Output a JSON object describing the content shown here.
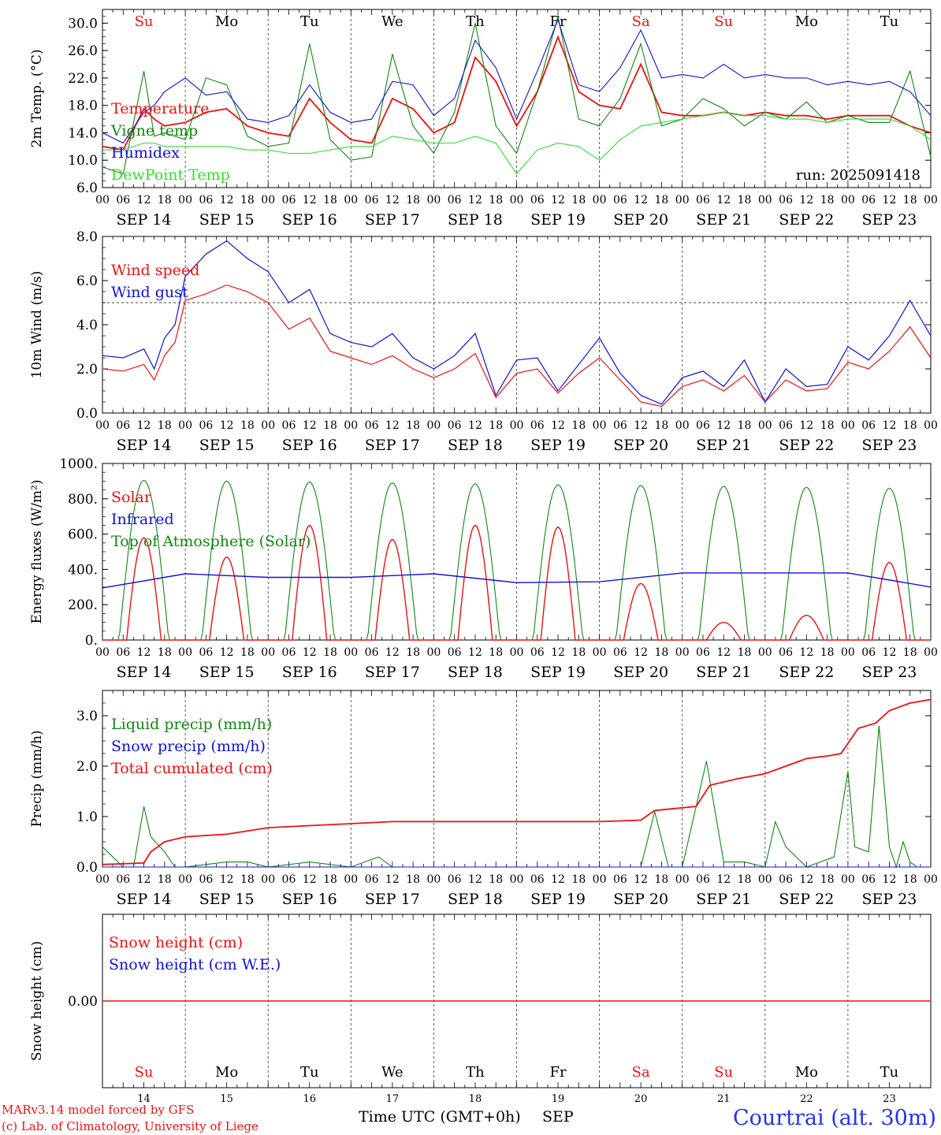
{
  "colors": {
    "red": "#ee1111",
    "green": "#118811",
    "blue": "#1111dd",
    "lightgreen": "#33dd33",
    "black": "#000000",
    "sunday": "#ee1111",
    "weekday": "#000000",
    "location": "#2233ee"
  },
  "run_label": "run: 2025091418",
  "footer": {
    "credit_line1": "MARv3.14 model forced by GFS",
    "credit_line2": "(c) Lab. of Climatology, University of Liege",
    "xlabel": "Time UTC (GMT+0h)",
    "month": "SEP",
    "location": "Courtrai (alt. 30m)"
  },
  "days": {
    "abbrev": [
      "Su",
      "Mo",
      "Tu",
      "We",
      "Th",
      "Fr",
      "Sa",
      "Su",
      "Mo",
      "Tu"
    ],
    "abbrev_colors": [
      "sunday",
      "weekday",
      "weekday",
      "weekday",
      "weekday",
      "weekday",
      "sunday",
      "sunday",
      "weekday",
      "weekday"
    ],
    "date_labels": [
      "SEP 14",
      "SEP 15",
      "SEP 16",
      "SEP 17",
      "SEP 18",
      "SEP 19",
      "SEP 20",
      "SEP 21",
      "SEP 22",
      "SEP 23"
    ],
    "day_numbers": [
      "14",
      "15",
      "16",
      "17",
      "18",
      "19",
      "20",
      "21",
      "22",
      "23"
    ],
    "hour_ticks": [
      "00",
      "06",
      "12",
      "18"
    ],
    "end_tick": "00"
  },
  "chart_data": [
    {
      "type": "line",
      "ylabel": "2m Temp. (°C)",
      "ylim": [
        6.0,
        32.0
      ],
      "yticks": [
        "6.0",
        "10.0",
        "14.0",
        "18.0",
        "22.0",
        "26.0",
        "30.0"
      ],
      "ytick_values": [
        6,
        10,
        14,
        18,
        22,
        26,
        30
      ],
      "x_hours": [
        0,
        6,
        12,
        15,
        18,
        24,
        30,
        36,
        42,
        48,
        54,
        60,
        66,
        72,
        78,
        84,
        90,
        96,
        102,
        108,
        114,
        120,
        126,
        132,
        138,
        144,
        150,
        156,
        162,
        168,
        174,
        180,
        186,
        192,
        198,
        204,
        210,
        216,
        222,
        228,
        234,
        240
      ],
      "series": [
        {
          "name": "Temperature",
          "color": "red",
          "values": [
            12.0,
            11.5,
            17.5,
            16.0,
            15.0,
            15.5,
            17.0,
            17.5,
            15.0,
            14.0,
            13.5,
            19.0,
            15.5,
            13.0,
            12.5,
            19.0,
            17.5,
            14.0,
            15.5,
            25.0,
            21.5,
            15.0,
            20.0,
            28.0,
            20.0,
            18.0,
            17.5,
            24.0,
            17.0,
            16.5,
            16.5,
            17.0,
            16.5,
            17.0,
            16.5,
            16.5,
            16.0,
            16.5,
            16.5,
            16.5,
            15.0,
            14.0
          ]
        },
        {
          "name": "Vigne temp",
          "color": "green",
          "values": [
            9.0,
            8.0,
            23.0,
            13.5,
            14.0,
            13.0,
            22.0,
            21.0,
            13.5,
            12.0,
            12.5,
            27.0,
            13.0,
            10.0,
            10.5,
            25.5,
            15.0,
            11.0,
            17.0,
            30.0,
            15.0,
            11.0,
            20.0,
            31.0,
            16.0,
            15.0,
            19.0,
            27.0,
            15.0,
            16.0,
            19.0,
            17.5,
            15.0,
            17.0,
            16.0,
            18.5,
            15.5,
            16.5,
            15.5,
            15.5,
            23.0,
            10.5
          ]
        },
        {
          "name": "Humidex",
          "color": "blue",
          "values": [
            14.0,
            12.5,
            17.0,
            18.0,
            20.0,
            22.0,
            19.5,
            20.0,
            16.0,
            15.5,
            16.5,
            21.0,
            17.0,
            15.5,
            16.0,
            21.5,
            21.0,
            16.5,
            19.0,
            27.5,
            23.5,
            16.0,
            23.0,
            30.5,
            21.0,
            20.0,
            23.5,
            29.0,
            22.0,
            22.5,
            22.0,
            24.0,
            22.0,
            22.5,
            22.0,
            22.0,
            21.0,
            21.5,
            21.0,
            21.5,
            20.0,
            16.5
          ]
        },
        {
          "name": "DewPoint Temp",
          "color": "lightgreen",
          "values": [
            11.5,
            11.5,
            12.5,
            12.5,
            12.0,
            12.0,
            12.0,
            12.0,
            11.5,
            11.5,
            11.0,
            11.0,
            11.5,
            12.0,
            12.0,
            13.5,
            13.0,
            12.5,
            12.5,
            13.5,
            12.5,
            8.0,
            11.5,
            12.5,
            12.0,
            10.0,
            13.0,
            15.0,
            15.5,
            16.0,
            16.5,
            17.0,
            16.5,
            16.5,
            16.0,
            16.0,
            15.5,
            16.0,
            16.0,
            16.0,
            15.0,
            13.0
          ]
        }
      ]
    },
    {
      "type": "line",
      "ylabel": "10m Wind (m/s)",
      "ylim": [
        0.0,
        8.0
      ],
      "yticks": [
        "0.0",
        "2.0",
        "4.0",
        "6.0",
        "8.0"
      ],
      "ytick_values": [
        0,
        2,
        4,
        6,
        8
      ],
      "reference_line": 5.0,
      "x_hours": [
        0,
        6,
        12,
        15,
        18,
        21,
        24,
        30,
        36,
        42,
        48,
        54,
        60,
        66,
        72,
        78,
        84,
        90,
        96,
        102,
        108,
        114,
        120,
        126,
        132,
        138,
        144,
        150,
        156,
        162,
        168,
        174,
        180,
        186,
        192,
        198,
        204,
        210,
        216,
        222,
        228,
        234,
        240
      ],
      "series": [
        {
          "name": "Wind speed",
          "color": "red",
          "values": [
            2.0,
            1.9,
            2.2,
            1.5,
            2.6,
            3.2,
            5.1,
            5.4,
            5.8,
            5.5,
            5.0,
            3.8,
            4.3,
            2.8,
            2.5,
            2.2,
            2.6,
            2.0,
            1.6,
            2.0,
            2.7,
            0.7,
            1.8,
            2.0,
            0.9,
            1.8,
            2.5,
            1.5,
            0.5,
            0.3,
            1.2,
            1.5,
            1.0,
            1.7,
            0.5,
            1.5,
            1.0,
            1.1,
            2.3,
            2.0,
            2.8,
            3.9,
            2.5
          ]
        },
        {
          "name": "Wind gust",
          "color": "blue",
          "values": [
            2.6,
            2.5,
            2.9,
            2.0,
            3.4,
            4.0,
            6.2,
            7.2,
            7.8,
            7.0,
            6.4,
            5.0,
            5.6,
            3.6,
            3.2,
            3.0,
            3.6,
            2.5,
            2.0,
            2.6,
            3.6,
            0.8,
            2.4,
            2.5,
            1.0,
            2.2,
            3.4,
            1.8,
            0.8,
            0.4,
            1.6,
            1.9,
            1.2,
            2.4,
            0.5,
            2.0,
            1.2,
            1.3,
            3.0,
            2.4,
            3.5,
            5.1,
            3.5
          ]
        }
      ]
    },
    {
      "type": "line",
      "ylabel": "Energy fluxes (W/m²)",
      "ylim": [
        0,
        1000
      ],
      "yticks": [
        "0.",
        "200.",
        "400.",
        "600.",
        "800.",
        "1000."
      ],
      "ytick_values": [
        0,
        200,
        400,
        600,
        800,
        1000
      ],
      "series": [
        {
          "name": "Solar",
          "color": "red",
          "day_peaks": [
            580,
            470,
            650,
            570,
            650,
            640,
            320,
            100,
            140,
            440
          ]
        },
        {
          "name": "Infrared",
          "color": "blue",
          "x_hours": [
            0,
            24,
            48,
            72,
            96,
            120,
            144,
            168,
            192,
            216,
            240
          ],
          "values": [
            295,
            375,
            355,
            355,
            375,
            325,
            330,
            380,
            380,
            380,
            300
          ]
        },
        {
          "name": "Top of Atmosphere (Solar)",
          "color": "green",
          "day_peaks": [
            905,
            900,
            895,
            890,
            885,
            880,
            875,
            870,
            865,
            860
          ]
        }
      ]
    },
    {
      "type": "line",
      "ylabel": "Precip (mm/h)",
      "ylim": [
        0.0,
        3.5
      ],
      "yticks": [
        "0.0",
        "1.0",
        "2.0",
        "3.0"
      ],
      "ytick_values": [
        0,
        1,
        2,
        3
      ],
      "series": [
        {
          "name": "Liquid precip (mm/h)",
          "color": "green",
          "x_hours": [
            0,
            3,
            6,
            9,
            12,
            14,
            18,
            21,
            24,
            36,
            42,
            48,
            60,
            72,
            80,
            84,
            96,
            120,
            144,
            156,
            160,
            164,
            168,
            175,
            180,
            186,
            192,
            195,
            198,
            204,
            212,
            216,
            218,
            222,
            225,
            228,
            230,
            232,
            234,
            236,
            240
          ],
          "values": [
            0.4,
            0.2,
            0.0,
            0.0,
            1.2,
            0.6,
            0.3,
            0.0,
            0.0,
            0.1,
            0.1,
            0.0,
            0.1,
            0.0,
            0.2,
            0.0,
            0.0,
            0.0,
            0.0,
            0.0,
            1.1,
            0.0,
            0.0,
            2.1,
            0.1,
            0.1,
            0.0,
            0.9,
            0.4,
            0.0,
            0.2,
            1.9,
            0.4,
            0.3,
            2.8,
            0.4,
            0.0,
            0.5,
            0.1,
            0.0,
            0.0
          ]
        },
        {
          "name": "Snow precip (mm/h)",
          "color": "blue",
          "x_hours": [
            0,
            240
          ],
          "values": [
            0.0,
            0.0
          ]
        },
        {
          "name": "Total cumulated (cm)",
          "color": "red",
          "x_hours": [
            0,
            12,
            14,
            18,
            24,
            36,
            48,
            60,
            72,
            84,
            96,
            120,
            144,
            156,
            160,
            172,
            176,
            184,
            192,
            198,
            204,
            210,
            214,
            219,
            224,
            228,
            234,
            240
          ],
          "values": [
            0.05,
            0.08,
            0.3,
            0.5,
            0.6,
            0.65,
            0.78,
            0.82,
            0.86,
            0.9,
            0.9,
            0.9,
            0.9,
            0.93,
            1.12,
            1.2,
            1.62,
            1.75,
            1.85,
            2.0,
            2.15,
            2.2,
            2.25,
            2.75,
            2.85,
            3.1,
            3.25,
            3.32
          ]
        }
      ]
    },
    {
      "type": "line",
      "ylabel": "Snow height (cm)",
      "ylim": [
        -1.0,
        1.0
      ],
      "yticks": [
        "0.00"
      ],
      "ytick_values": [
        0
      ],
      "series": [
        {
          "name": "Snow height (cm)",
          "color": "red",
          "x_hours": [
            0,
            240
          ],
          "values": [
            0.0,
            0.0
          ]
        },
        {
          "name": "Snow height (cm W.E.)",
          "color": "blue",
          "x_hours": [],
          "values": []
        }
      ]
    }
  ]
}
